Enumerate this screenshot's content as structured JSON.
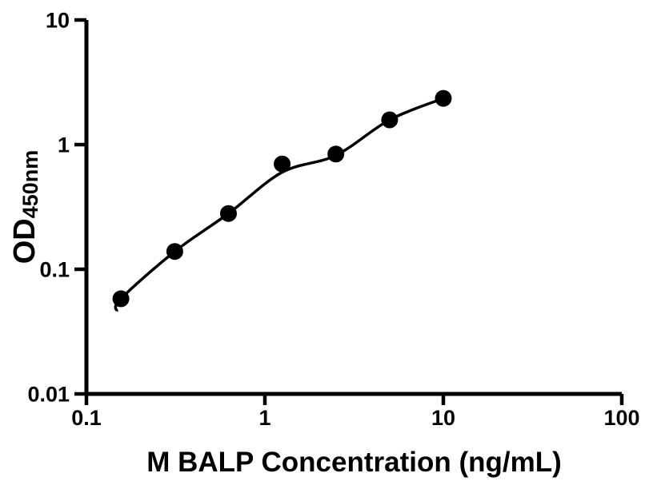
{
  "figure": {
    "background_color": "#ffffff",
    "ink_color": "#000000"
  },
  "chart_data": {
    "type": "scatter",
    "title": "",
    "xlabel": "M BALP Concentration (ng/mL)",
    "ylabel": "OD",
    "ylabel_sub": "450nm",
    "x_scale": "log",
    "y_scale": "log",
    "xlim": [
      0.1,
      100
    ],
    "ylim": [
      0.01,
      10
    ],
    "grid": false,
    "legend": "none",
    "x_ticks": [
      {
        "value": 0.1,
        "label": "0.1"
      },
      {
        "value": 1,
        "label": "1"
      },
      {
        "value": 10,
        "label": "10"
      },
      {
        "value": 100,
        "label": "100"
      }
    ],
    "y_ticks": [
      {
        "value": 0.01,
        "label": "0.01"
      },
      {
        "value": 0.1,
        "label": "0.1"
      },
      {
        "value": 1,
        "label": "1"
      },
      {
        "value": 10,
        "label": "10"
      }
    ],
    "points": [
      {
        "x": 0.156,
        "od": 0.058
      },
      {
        "x": 0.3125,
        "od": 0.139
      },
      {
        "x": 0.625,
        "od": 0.28
      },
      {
        "x": 1.25,
        "od": 0.7
      },
      {
        "x": 2.5,
        "od": 0.84
      },
      {
        "x": 5,
        "od": 1.58
      },
      {
        "x": 10,
        "od": 2.35
      }
    ],
    "fit_curve": [
      {
        "x": 0.148,
        "od": 0.046
      },
      {
        "x": 0.156,
        "od": 0.058
      },
      {
        "x": 0.3125,
        "od": 0.139
      },
      {
        "x": 0.625,
        "od": 0.28
      },
      {
        "x": 1.25,
        "od": 0.6
      },
      {
        "x": 2.5,
        "od": 0.82
      },
      {
        "x": 5,
        "od": 1.58
      },
      {
        "x": 10,
        "od": 2.35
      }
    ],
    "marker_color": "#000000",
    "line_color": "#000000",
    "axis_color": "#000000"
  }
}
